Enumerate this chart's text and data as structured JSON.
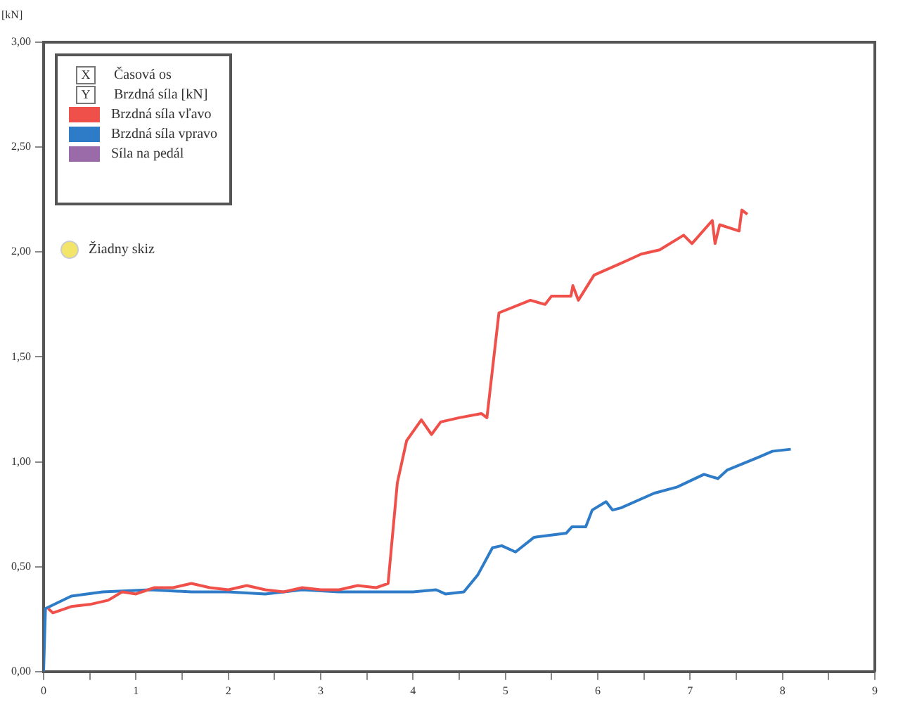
{
  "chart_data": {
    "type": "line",
    "xlabel": "Časová os",
    "ylabel": "Brzdná síla [kN]",
    "annotations": [
      "[kN]",
      "X",
      "Y",
      "Žiadny skiz"
    ],
    "xlim": [
      0,
      9
    ],
    "ylim": [
      0,
      3
    ],
    "xticks": [
      0,
      {
        "value": 0.5,
        "label": null
      },
      1,
      {
        "value": 1.5,
        "label": null
      },
      2,
      {
        "value": 2.5,
        "label": null
      },
      3,
      {
        "value": 3.5,
        "label": null
      },
      4,
      {
        "value": 4.5,
        "label": null
      },
      5,
      {
        "value": 5.5,
        "label": null
      },
      6,
      {
        "value": 6.5,
        "label": null
      },
      7,
      {
        "value": 7.5,
        "label": null
      },
      8,
      {
        "value": 8.5,
        "label": null
      },
      9
    ],
    "yticks": [
      {
        "value": 0,
        "label": "0,00"
      },
      {
        "value": 0.5,
        "label": "0,50"
      },
      {
        "value": 1,
        "label": "1,00"
      },
      {
        "value": 1.5,
        "label": "1,50"
      },
      {
        "value": 2,
        "label": "2,00"
      },
      {
        "value": 2.5,
        "label": "2,50"
      },
      {
        "value": 3,
        "label": "3,00"
      }
    ],
    "grid": false,
    "legend": "top left",
    "marker": "none",
    "line_style": "solid",
    "series": [
      {
        "name": "Brzdná síla vľavo",
        "color": "#f0504a",
        "x": [
          0.05,
          0.1,
          0.3,
          0.5,
          0.7,
          0.85,
          1.0,
          1.2,
          1.4,
          1.6,
          1.8,
          2.0,
          2.2,
          2.4,
          2.6,
          2.8,
          3.0,
          3.2,
          3.4,
          3.6,
          3.73,
          3.83,
          3.93,
          4.09,
          4.2,
          4.3,
          4.5,
          4.74,
          4.8,
          4.93,
          5.27,
          5.43,
          5.5,
          5.71,
          5.73,
          5.79,
          5.96,
          6.22,
          6.32,
          6.47,
          6.67,
          6.93,
          7.02,
          7.24,
          7.27,
          7.32,
          7.53,
          7.56,
          7.62
        ],
        "values": [
          0.3,
          0.28,
          0.31,
          0.32,
          0.34,
          0.38,
          0.37,
          0.4,
          0.4,
          0.42,
          0.4,
          0.39,
          0.41,
          0.39,
          0.38,
          0.4,
          0.39,
          0.39,
          0.41,
          0.4,
          0.42,
          0.9,
          1.1,
          1.2,
          1.13,
          1.19,
          1.21,
          1.23,
          1.21,
          1.71,
          1.77,
          1.75,
          1.79,
          1.79,
          1.84,
          1.77,
          1.89,
          1.94,
          1.96,
          1.99,
          2.01,
          2.08,
          2.04,
          2.15,
          2.04,
          2.13,
          2.1,
          2.2,
          2.18
        ]
      },
      {
        "name": "Brzdná síla vpravo",
        "color": "#2e7cc8",
        "x": [
          0,
          0.02,
          0.3,
          0.64,
          1.15,
          1.6,
          2.0,
          2.4,
          2.8,
          3.2,
          3.6,
          4.0,
          4.25,
          4.35,
          4.55,
          4.7,
          4.86,
          4.96,
          5.11,
          5.31,
          5.66,
          5.72,
          5.87,
          5.94,
          6.09,
          6.16,
          6.25,
          6.61,
          6.86,
          7.15,
          7.3,
          7.4,
          7.73,
          7.89,
          8.09
        ],
        "values": [
          0,
          0.3,
          0.36,
          0.38,
          0.39,
          0.38,
          0.38,
          0.37,
          0.39,
          0.38,
          0.38,
          0.38,
          0.39,
          0.37,
          0.38,
          0.46,
          0.59,
          0.6,
          0.57,
          0.64,
          0.66,
          0.69,
          0.69,
          0.77,
          0.81,
          0.77,
          0.78,
          0.85,
          0.88,
          0.94,
          0.92,
          0.96,
          1.02,
          1.05,
          1.06
        ]
      },
      {
        "name": "Síla na pedál",
        "color": "#9b6aa8"
      }
    ]
  }
}
